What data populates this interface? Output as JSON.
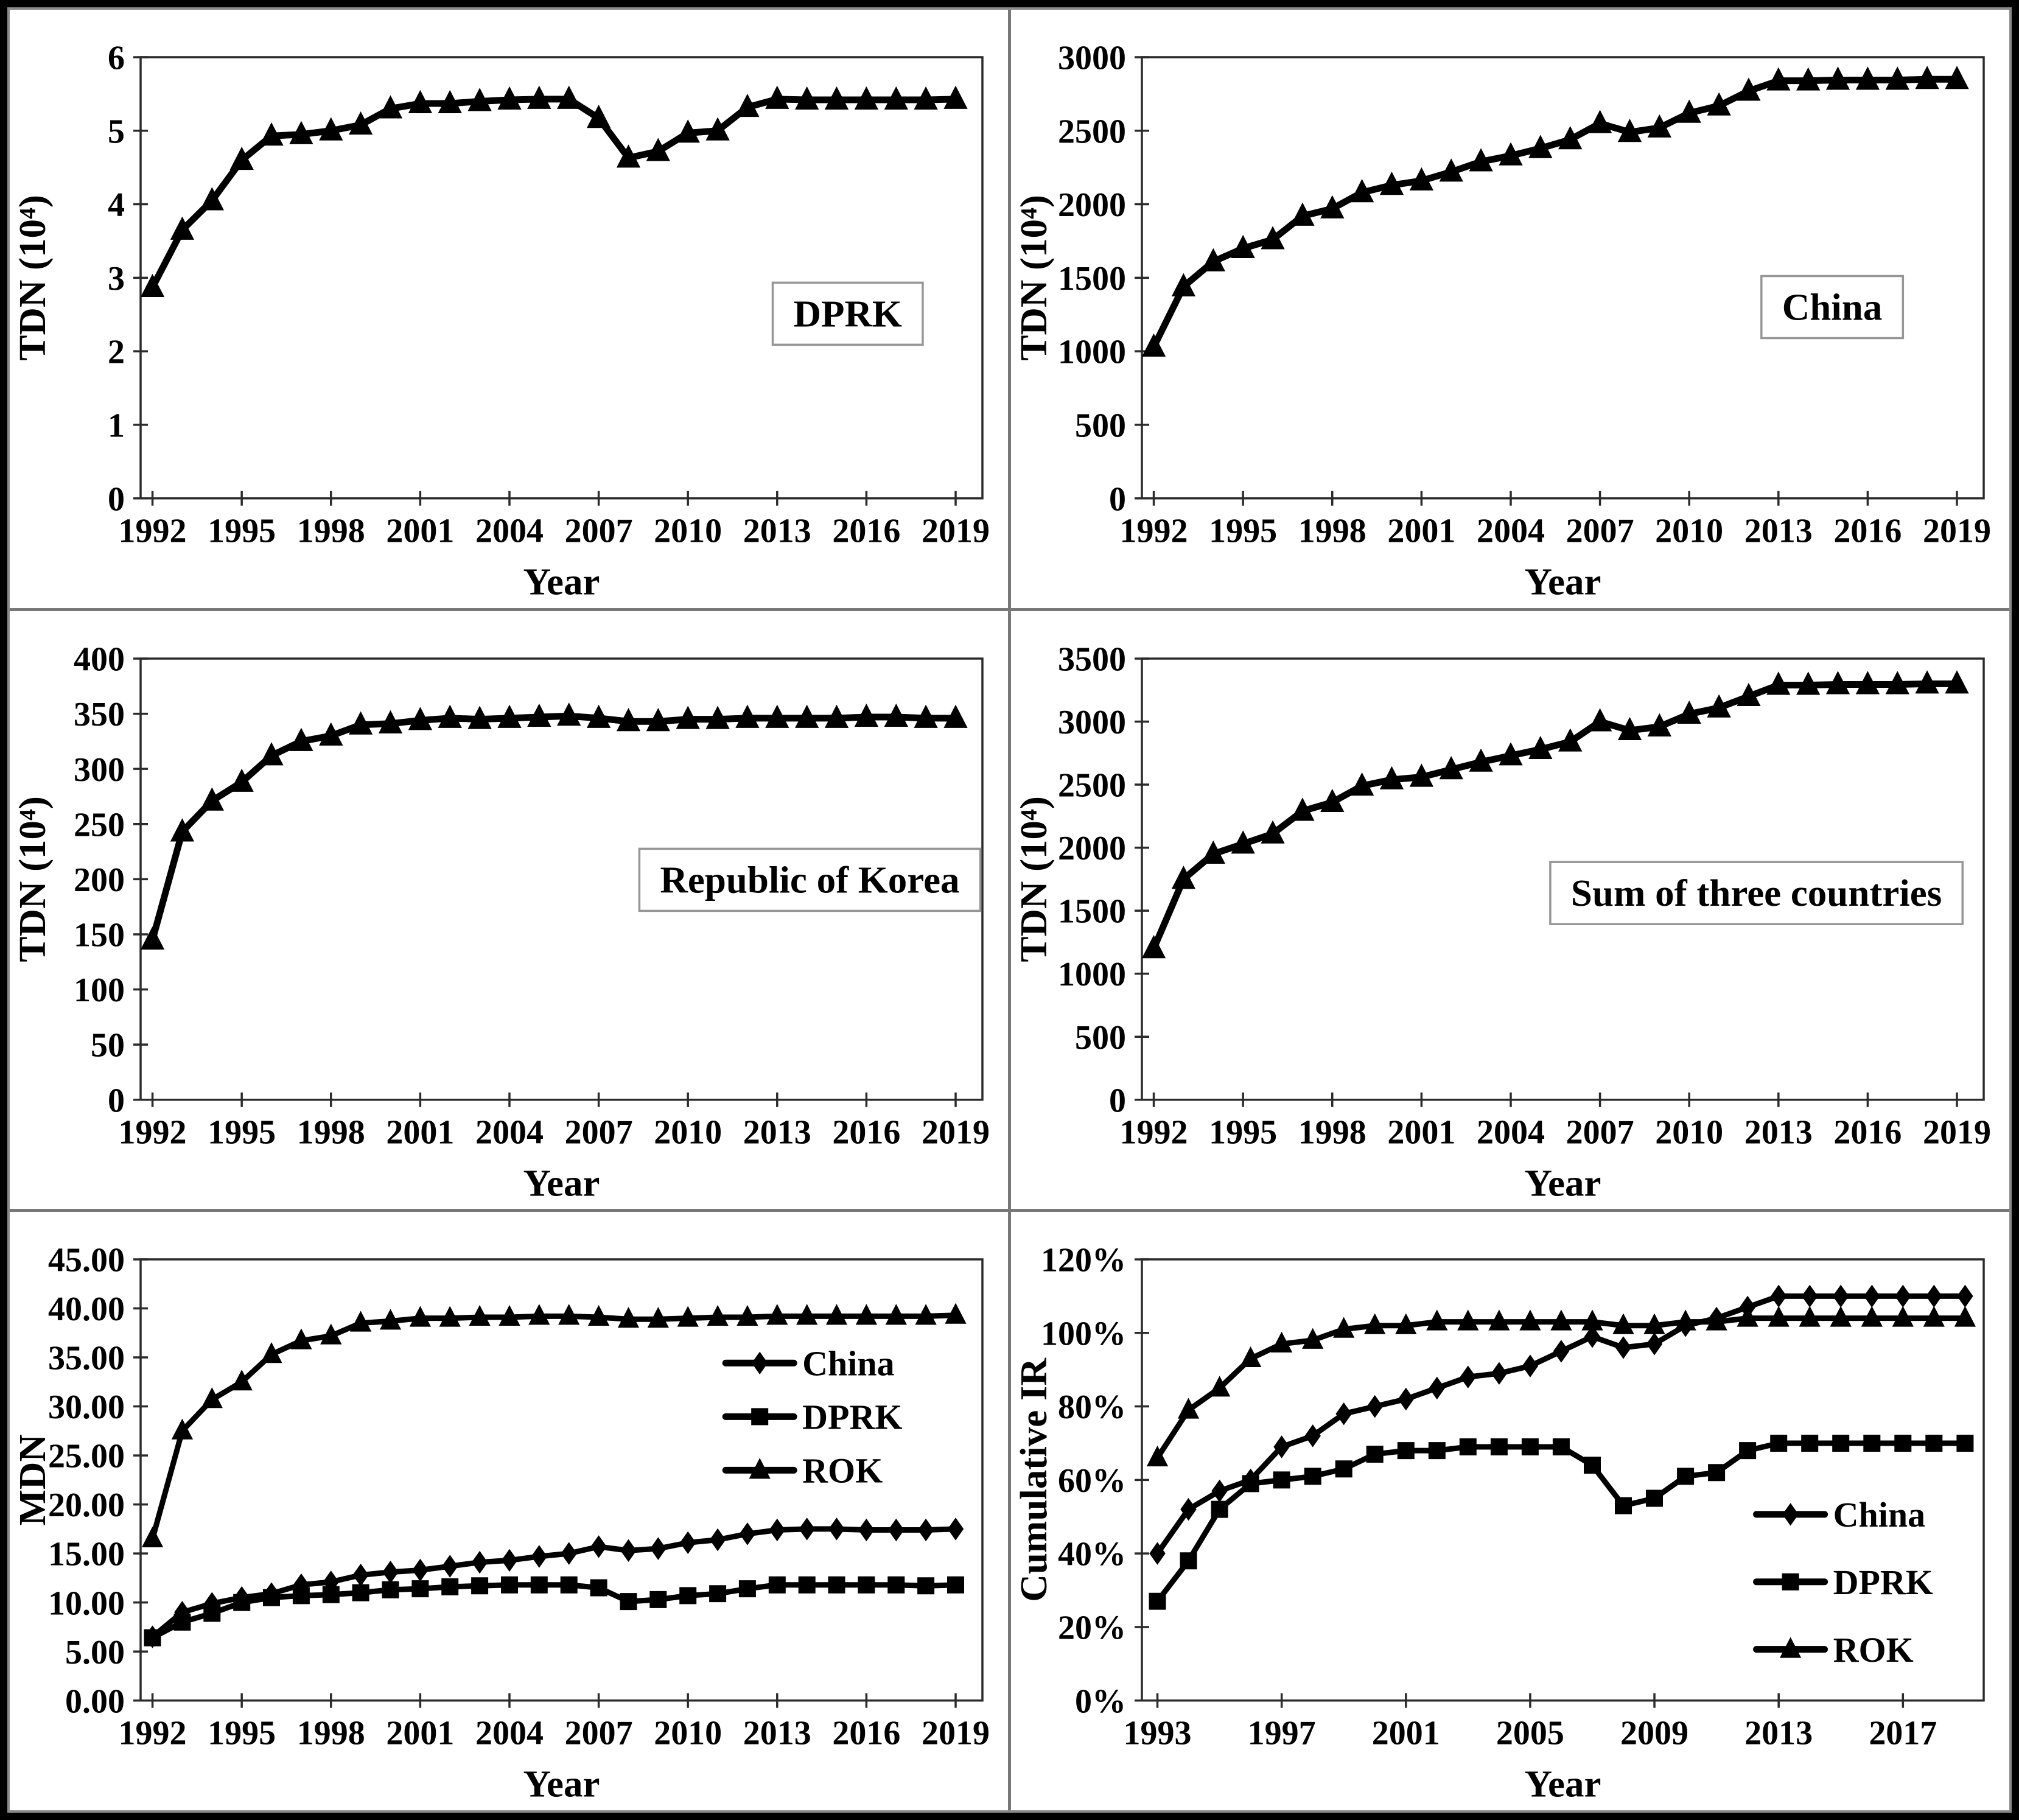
{
  "page": {
    "background": "#ffffff",
    "frame_color": "#000000",
    "divider_color": "#787878",
    "series_color": "#000000"
  },
  "chart_data": [
    {
      "id": "dprk-tdn",
      "type": "line",
      "panel_label": "DPRK",
      "xlabel": "Year",
      "ylabel": "TDN (10⁴)",
      "ylim": [
        0,
        6
      ],
      "ytick_values": [
        0,
        1,
        2,
        3,
        4,
        5,
        6
      ],
      "ytick_labels": [
        "0",
        "1",
        "2",
        "3",
        "4",
        "5",
        "6"
      ],
      "xlim": [
        1991.6,
        2019.9
      ],
      "xtick_values": [
        1992,
        1995,
        1998,
        2001,
        2004,
        2007,
        2010,
        2013,
        2016,
        2019
      ],
      "xtick_labels": [
        "1992",
        "1995",
        "1998",
        "2001",
        "2004",
        "2007",
        "2010",
        "2013",
        "2016",
        "2019"
      ],
      "x": [
        1992,
        1993,
        1994,
        1995,
        1996,
        1997,
        1998,
        1999,
        2000,
        2001,
        2002,
        2003,
        2004,
        2005,
        2006,
        2007,
        2008,
        2009,
        2010,
        2011,
        2012,
        2013,
        2014,
        2015,
        2016,
        2017,
        2018,
        2019
      ],
      "grid": false,
      "legend": null,
      "label_pos": {
        "fx": 0.84,
        "fy": 0.58
      },
      "series": [
        {
          "name": "DPRK",
          "marker": "triangle",
          "values": [
            2.87,
            3.65,
            4.05,
            4.6,
            4.93,
            4.95,
            5.0,
            5.08,
            5.3,
            5.37,
            5.37,
            5.4,
            5.42,
            5.43,
            5.43,
            5.17,
            4.63,
            4.72,
            4.97,
            5.0,
            5.32,
            5.43,
            5.42,
            5.42,
            5.42,
            5.42,
            5.42,
            5.43
          ]
        }
      ]
    },
    {
      "id": "china-tdn",
      "type": "line",
      "panel_label": "China",
      "xlabel": "Year",
      "ylabel": "TDN (10⁴)",
      "ylim": [
        0,
        3000
      ],
      "ytick_values": [
        0,
        500,
        1000,
        1500,
        2000,
        2500,
        3000
      ],
      "ytick_labels": [
        "0",
        "500",
        "1000",
        "1500",
        "2000",
        "2500",
        "3000"
      ],
      "xlim": [
        1991.6,
        2019.9
      ],
      "xtick_values": [
        1992,
        1995,
        1998,
        2001,
        2004,
        2007,
        2010,
        2013,
        2016,
        2019
      ],
      "xtick_labels": [
        "1992",
        "1995",
        "1998",
        "2001",
        "2004",
        "2007",
        "2010",
        "2013",
        "2016",
        "2019"
      ],
      "x": [
        1992,
        1993,
        1994,
        1995,
        1996,
        1997,
        1998,
        1999,
        2000,
        2001,
        2002,
        2003,
        2004,
        2005,
        2006,
        2007,
        2008,
        2009,
        2010,
        2011,
        2012,
        2013,
        2014,
        2015,
        2016,
        2017,
        2018,
        2019
      ],
      "grid": false,
      "legend": null,
      "label_pos": {
        "fx": 0.82,
        "fy": 0.565
      },
      "series": [
        {
          "name": "China",
          "marker": "triangle",
          "values": [
            1030,
            1440,
            1610,
            1700,
            1760,
            1920,
            1970,
            2080,
            2130,
            2160,
            2220,
            2290,
            2330,
            2380,
            2440,
            2550,
            2490,
            2520,
            2620,
            2670,
            2770,
            2840,
            2840,
            2845,
            2845,
            2845,
            2850,
            2850
          ]
        }
      ]
    },
    {
      "id": "rok-tdn",
      "type": "line",
      "panel_label": "Republic of Korea",
      "xlabel": "Year",
      "ylabel": "TDN (10⁴)",
      "ylim": [
        0,
        400
      ],
      "ytick_values": [
        0,
        50,
        100,
        150,
        200,
        250,
        300,
        350,
        400
      ],
      "ytick_labels": [
        "0",
        "50",
        "100",
        "150",
        "200",
        "250",
        "300",
        "350",
        "400"
      ],
      "xlim": [
        1991.6,
        2019.9
      ],
      "xtick_values": [
        1992,
        1995,
        1998,
        2001,
        2004,
        2007,
        2010,
        2013,
        2016,
        2019
      ],
      "xtick_labels": [
        "1992",
        "1995",
        "1998",
        "2001",
        "2004",
        "2007",
        "2010",
        "2013",
        "2016",
        "2019"
      ],
      "x": [
        1992,
        1993,
        1994,
        1995,
        1996,
        1997,
        1998,
        1999,
        2000,
        2001,
        2002,
        2003,
        2004,
        2005,
        2006,
        2007,
        2008,
        2009,
        2010,
        2011,
        2012,
        2013,
        2014,
        2015,
        2016,
        2017,
        2018,
        2019
      ],
      "grid": false,
      "legend": null,
      "label_pos": {
        "fx": 0.795,
        "fy": 0.5
      },
      "series": [
        {
          "name": "Republic of Korea",
          "marker": "triangle",
          "values": [
            145,
            243,
            271,
            288,
            312,
            325,
            330,
            340,
            341,
            344,
            346,
            345,
            346,
            347,
            348,
            346,
            343,
            343,
            345,
            345,
            346,
            346,
            346,
            346,
            347,
            347,
            346,
            346
          ]
        }
      ]
    },
    {
      "id": "sum-tdn",
      "type": "line",
      "panel_label": "Sum of three countries",
      "xlabel": "Year",
      "ylabel": "TDN (10⁴)",
      "ylim": [
        0,
        3500
      ],
      "ytick_values": [
        0,
        500,
        1000,
        1500,
        2000,
        2500,
        3000,
        3500
      ],
      "ytick_labels": [
        "0",
        "500",
        "1000",
        "1500",
        "2000",
        "2500",
        "3000",
        "3500"
      ],
      "xlim": [
        1991.6,
        2019.9
      ],
      "xtick_values": [
        1992,
        1995,
        1998,
        2001,
        2004,
        2007,
        2010,
        2013,
        2016,
        2019
      ],
      "xtick_labels": [
        "1992",
        "1995",
        "1998",
        "2001",
        "2004",
        "2007",
        "2010",
        "2013",
        "2016",
        "2019"
      ],
      "x": [
        1992,
        1993,
        1994,
        1995,
        1996,
        1997,
        1998,
        1999,
        2000,
        2001,
        2002,
        2003,
        2004,
        2005,
        2006,
        2007,
        2008,
        2009,
        2010,
        2011,
        2012,
        2013,
        2014,
        2015,
        2016,
        2017,
        2018,
        2019
      ],
      "grid": false,
      "legend": null,
      "label_pos": {
        "fx": 0.73,
        "fy": 0.53
      },
      "series": [
        {
          "name": "Sum of three countries",
          "marker": "triangle",
          "values": [
            1200,
            1750,
            1950,
            2030,
            2110,
            2290,
            2360,
            2490,
            2540,
            2560,
            2620,
            2680,
            2730,
            2780,
            2840,
            3000,
            2930,
            2960,
            3060,
            3110,
            3200,
            3290,
            3290,
            3295,
            3295,
            3295,
            3300,
            3300
          ]
        }
      ]
    },
    {
      "id": "mdn",
      "type": "line",
      "panel_label": null,
      "xlabel": "Year",
      "ylabel": "MDN",
      "ylim": [
        0,
        45
      ],
      "ytick_values": [
        0,
        5,
        10,
        15,
        20,
        25,
        30,
        35,
        40,
        45
      ],
      "ytick_labels": [
        "0.00",
        "5.00",
        "10.00",
        "15.00",
        "20.00",
        "25.00",
        "30.00",
        "35.00",
        "40.00",
        "45.00"
      ],
      "xlim": [
        1991.6,
        2019.9
      ],
      "xtick_values": [
        1992,
        1995,
        1998,
        2001,
        2004,
        2007,
        2010,
        2013,
        2016,
        2019
      ],
      "xtick_labels": [
        "1992",
        "1995",
        "1998",
        "2001",
        "2004",
        "2007",
        "2010",
        "2013",
        "2016",
        "2019"
      ],
      "x": [
        1992,
        1993,
        1994,
        1995,
        1996,
        1997,
        1998,
        1999,
        2000,
        2001,
        2002,
        2003,
        2004,
        2005,
        2006,
        2007,
        2008,
        2009,
        2010,
        2011,
        2012,
        2013,
        2014,
        2015,
        2016,
        2017,
        2018,
        2019
      ],
      "grid": false,
      "legend": {
        "fx": 0.695,
        "fy": 0.235,
        "gap": 0.1215,
        "position": "right-upper-inside"
      },
      "label_pos": null,
      "series": [
        {
          "name": "China",
          "marker": "diamond",
          "values": [
            6.5,
            9.0,
            9.9,
            10.5,
            10.9,
            11.8,
            12.1,
            12.8,
            13.1,
            13.3,
            13.7,
            14.1,
            14.3,
            14.7,
            15.0,
            15.7,
            15.3,
            15.5,
            16.1,
            16.4,
            17.0,
            17.4,
            17.5,
            17.5,
            17.4,
            17.4,
            17.4,
            17.5
          ]
        },
        {
          "name": "DPRK",
          "marker": "square",
          "values": [
            6.4,
            8.0,
            8.9,
            10.0,
            10.5,
            10.7,
            10.8,
            11.0,
            11.3,
            11.4,
            11.6,
            11.7,
            11.8,
            11.8,
            11.8,
            11.5,
            10.1,
            10.3,
            10.7,
            10.9,
            11.4,
            11.8,
            11.8,
            11.8,
            11.8,
            11.8,
            11.7,
            11.8
          ]
        },
        {
          "name": "ROK",
          "marker": "triangle",
          "values": [
            16.5,
            27.5,
            30.7,
            32.5,
            35.3,
            36.7,
            37.2,
            38.5,
            38.7,
            39.0,
            39.0,
            39.1,
            39.1,
            39.2,
            39.2,
            39.1,
            38.9,
            38.9,
            39.0,
            39.1,
            39.1,
            39.2,
            39.2,
            39.2,
            39.2,
            39.2,
            39.2,
            39.3
          ]
        }
      ]
    },
    {
      "id": "cumulative-ir",
      "type": "line",
      "panel_label": null,
      "xlabel": "Year",
      "ylabel": "Cumulative IR",
      "ylim": [
        0,
        120
      ],
      "ytick_values": [
        0,
        20,
        40,
        60,
        80,
        100,
        120
      ],
      "ytick_labels": [
        "0%",
        "20%",
        "40%",
        "60%",
        "80%",
        "100%",
        "120%"
      ],
      "xlim": [
        1992.5,
        2019.6
      ],
      "xtick_values": [
        1993,
        1997,
        2001,
        2005,
        2009,
        2013,
        2017
      ],
      "xtick_labels": [
        "1993",
        "1997",
        "2001",
        "2005",
        "2009",
        "2013",
        "2017"
      ],
      "x": [
        1993,
        1994,
        1995,
        1996,
        1997,
        1998,
        1999,
        2000,
        2001,
        2002,
        2003,
        2004,
        2005,
        2006,
        2007,
        2008,
        2009,
        2010,
        2011,
        2012,
        2013,
        2014,
        2015,
        2016,
        2017,
        2018,
        2019
      ],
      "grid": false,
      "legend": {
        "fx": 0.73,
        "fy": 0.578,
        "gap": 0.153,
        "position": "right-lower-inside"
      },
      "label_pos": null,
      "series": [
        {
          "name": "China",
          "marker": "diamond",
          "values": [
            40,
            52,
            57,
            60,
            69,
            72,
            78,
            80,
            82,
            85,
            88,
            89,
            91,
            95,
            99,
            96,
            97,
            102,
            104,
            107,
            110,
            110,
            110,
            110,
            110,
            110,
            110
          ]
        },
        {
          "name": "DPRK",
          "marker": "square",
          "values": [
            27,
            38,
            52,
            59,
            60,
            61,
            63,
            67,
            68,
            68,
            69,
            69,
            69,
            69,
            64,
            53,
            55,
            61,
            62,
            68,
            70,
            70,
            70,
            70,
            70,
            70,
            70
          ]
        },
        {
          "name": "ROK",
          "marker": "triangle",
          "values": [
            66,
            79,
            85,
            93,
            97,
            98,
            101,
            102,
            102,
            103,
            103,
            103,
            103,
            103,
            103,
            102,
            102,
            103,
            103,
            104,
            104,
            104,
            104,
            104,
            104,
            104,
            104
          ]
        }
      ]
    }
  ]
}
